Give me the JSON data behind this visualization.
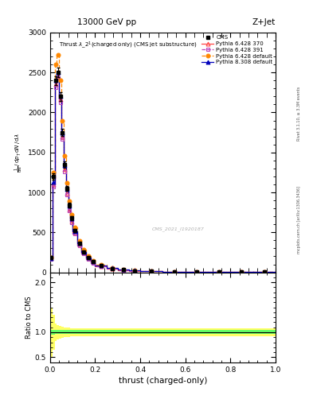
{
  "title_top": "13000 GeV pp",
  "title_right": "Z+Jet",
  "plot_title": "Thrust $\\lambda\\_2^1$(charged only) (CMS jet substructure)",
  "xlabel": "thrust (charged-only)",
  "ylabel_ratio": "Ratio to CMS",
  "right_label": "mcplots.cern.ch [arXiv:1306.3436]",
  "right_label2": "Rivet 3.1.10, ≥ 3.3M events",
  "watermark": "CMS_2021_I1920187",
  "x_bins": [
    0.0,
    0.01,
    0.02,
    0.03,
    0.04,
    0.05,
    0.06,
    0.07,
    0.08,
    0.09,
    0.1,
    0.12,
    0.14,
    0.16,
    0.18,
    0.2,
    0.25,
    0.3,
    0.35,
    0.4,
    0.5,
    0.6,
    0.7,
    0.8,
    0.9,
    1.0
  ],
  "cms_data": [
    180,
    1200,
    2400,
    2500,
    2200,
    1750,
    1350,
    1050,
    840,
    680,
    520,
    360,
    255,
    182,
    132,
    82,
    50,
    31,
    20,
    14,
    8,
    5,
    3,
    2,
    1
  ],
  "py6_370": [
    170,
    1100,
    2350,
    2450,
    2160,
    1700,
    1290,
    990,
    785,
    630,
    490,
    340,
    243,
    172,
    122,
    76,
    46,
    28,
    18,
    12,
    7,
    4,
    2.5,
    1.5,
    0.8
  ],
  "py6_391": [
    165,
    1070,
    2310,
    2430,
    2120,
    1670,
    1260,
    970,
    768,
    618,
    482,
    333,
    239,
    169,
    119,
    74,
    44,
    27,
    17,
    11,
    6.5,
    4,
    2.5,
    1.4,
    0.8
  ],
  "py6_def": [
    185,
    1250,
    2600,
    2720,
    2400,
    1900,
    1460,
    1120,
    895,
    720,
    560,
    392,
    282,
    200,
    148,
    92,
    57,
    36,
    23,
    16,
    9,
    5.5,
    3.5,
    2,
    1.1
  ],
  "py8_def": [
    172,
    1130,
    2400,
    2500,
    2200,
    1750,
    1340,
    1040,
    832,
    672,
    516,
    360,
    258,
    185,
    135,
    84,
    52,
    32,
    21,
    14,
    8,
    5,
    3,
    1.8,
    1.0
  ],
  "cms_err_stat": [
    20,
    40,
    55,
    60,
    58,
    48,
    40,
    33,
    28,
    24,
    20,
    15,
    12,
    10,
    8,
    6,
    4,
    3,
    2,
    1.5,
    1,
    0.7,
    0.5,
    0.3,
    0.2
  ],
  "ratio_green_upper": [
    1.05,
    1.05,
    1.04,
    1.04,
    1.04,
    1.04,
    1.04,
    1.04,
    1.04,
    1.04,
    1.04,
    1.04,
    1.04,
    1.04,
    1.04,
    1.04,
    1.04,
    1.04,
    1.04,
    1.04,
    1.04,
    1.04,
    1.04,
    1.04,
    1.04
  ],
  "ratio_green_lower": [
    0.95,
    0.95,
    0.96,
    0.96,
    0.96,
    0.96,
    0.96,
    0.96,
    0.96,
    0.96,
    0.96,
    0.96,
    0.96,
    0.96,
    0.96,
    0.96,
    0.96,
    0.96,
    0.96,
    0.96,
    0.96,
    0.96,
    0.96,
    0.96,
    0.96
  ],
  "ratio_yellow_upper": [
    1.5,
    1.35,
    1.18,
    1.14,
    1.12,
    1.11,
    1.1,
    1.09,
    1.09,
    1.08,
    1.08,
    1.08,
    1.08,
    1.08,
    1.08,
    1.08,
    1.08,
    1.08,
    1.08,
    1.08,
    1.08,
    1.08,
    1.08,
    1.08,
    1.08
  ],
  "ratio_yellow_lower": [
    0.5,
    0.65,
    0.82,
    0.86,
    0.88,
    0.89,
    0.9,
    0.91,
    0.91,
    0.92,
    0.92,
    0.92,
    0.92,
    0.92,
    0.92,
    0.92,
    0.92,
    0.92,
    0.92,
    0.92,
    0.92,
    0.92,
    0.92,
    0.92,
    0.92
  ],
  "ylim_main": [
    0,
    3000
  ],
  "ylim_ratio": [
    0.4,
    2.2
  ],
  "color_py6_370": "#ff4444",
  "color_py6_391": "#bb44bb",
  "color_py6_def": "#ff8800",
  "color_py8_def": "#0000bb",
  "color_cms": "#000000",
  "background_color": "#ffffff",
  "ylabel_parts": [
    "mathrm d^{2}N",
    "mathrm d p_{T} mathrm d lambda"
  ],
  "yticks_main": [
    0,
    500,
    1000,
    1500,
    2000,
    2500,
    3000
  ]
}
